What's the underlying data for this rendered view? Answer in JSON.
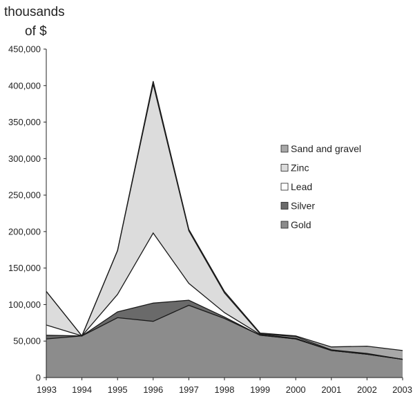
{
  "chart_data": {
    "type": "area",
    "stacked": true,
    "ylabel_line1": "thousands",
    "ylabel_line2": "of $",
    "categories": [
      "1993",
      "1994",
      "1995",
      "1996",
      "1997",
      "1998",
      "1999",
      "2000",
      "2001",
      "2002",
      "2003"
    ],
    "yticks": [
      "0",
      "50,000",
      "100,000",
      "150,000",
      "200,000",
      "250,000",
      "300,000",
      "350,000",
      "400,000",
      "450,000"
    ],
    "ylim": [
      0,
      450000
    ],
    "legend_position": "right",
    "series": [
      {
        "name": "Gold",
        "color": "#8c8c8c",
        "values": [
          53000,
          57000,
          82000,
          77000,
          99000,
          81000,
          58000,
          53000,
          37000,
          32000,
          25000
        ]
      },
      {
        "name": "Silver",
        "color": "#6a6a6a",
        "values": [
          5000,
          0,
          8000,
          25000,
          7000,
          2000,
          0,
          0,
          0,
          0,
          0
        ]
      },
      {
        "name": "Lead",
        "color": "#ffffff",
        "values": [
          14000,
          0,
          24000,
          96000,
          23000,
          6000,
          1000,
          1000,
          0,
          0,
          0
        ]
      },
      {
        "name": "Zinc",
        "color": "#dcdcdc",
        "values": [
          46000,
          0,
          60000,
          204000,
          72000,
          27000,
          1000,
          2000,
          1000,
          1000,
          0
        ]
      },
      {
        "name": "Sand and gravel",
        "color": "#a8a8a8",
        "values": [
          0,
          0,
          0,
          4000,
          2000,
          2000,
          1000,
          1000,
          4000,
          10000,
          12000
        ]
      }
    ],
    "legend_order": [
      "Sand and gravel",
      "Zinc",
      "Lead",
      "Silver",
      "Gold"
    ]
  }
}
